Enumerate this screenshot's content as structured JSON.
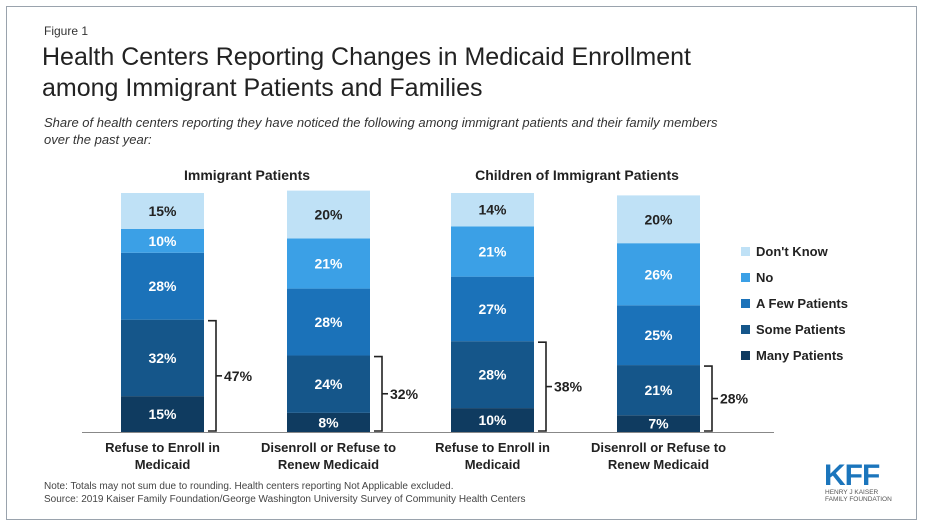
{
  "figure_label": "Figure 1",
  "title_line1": "Health Centers Reporting Changes in Medicaid Enrollment",
  "title_line2": "among Immigrant Patients and Families",
  "subtitle_line1": "Share of health centers reporting they have noticed the following among immigrant patients and their family members",
  "subtitle_line2": "over the past year:",
  "note_line1": "Note: Totals may not sum due to rounding. Health centers reporting Not Applicable excluded.",
  "note_line2": "Source: 2019 Kaiser Family Foundation/George Washington University Survey of Community Health Centers",
  "logo": {
    "mark": "KFF",
    "line1": "HENRY J KAISER",
    "line2": "FAMILY FOUNDATION",
    "color": "#1b75bc"
  },
  "colors": {
    "Many Patients": "#0f3b60",
    "Some Patients": "#15568a",
    "A Few Patients": "#1b72b9",
    "No": "#3ba0e6",
    "Don't Know": "#bfe1f6"
  },
  "chart_data": {
    "type": "bar",
    "stacked": true,
    "groups": [
      {
        "title": "Immigrant Patients",
        "categories": [
          "Refuse to Enroll in Medicaid",
          "Disenroll or Refuse to Renew Medicaid"
        ]
      },
      {
        "title": "Children of Immigrant Patients",
        "categories": [
          "Refuse to Enroll in Medicaid",
          "Disenroll or Refuse to Renew Medicaid"
        ]
      }
    ],
    "categories": [
      "Refuse to Enroll in Medicaid",
      "Disenroll or Refuse to Renew Medicaid",
      "Refuse to Enroll in Medicaid",
      "Disenroll or Refuse to Renew Medicaid"
    ],
    "category_lines": [
      [
        "Refuse to Enroll in",
        "Medicaid"
      ],
      [
        "Disenroll or Refuse to",
        "Renew Medicaid"
      ],
      [
        "Refuse to Enroll in",
        "Medicaid"
      ],
      [
        "Disenroll or Refuse to",
        "Renew Medicaid"
      ]
    ],
    "series": [
      {
        "name": "Many Patients",
        "values": [
          15,
          8,
          10,
          7
        ]
      },
      {
        "name": "Some Patients",
        "values": [
          32,
          24,
          28,
          21
        ]
      },
      {
        "name": "A Few Patients",
        "values": [
          28,
          28,
          27,
          25
        ]
      },
      {
        "name": "No",
        "values": [
          10,
          21,
          21,
          26
        ]
      },
      {
        "name": "Don't Know",
        "values": [
          15,
          20,
          14,
          20
        ]
      }
    ],
    "data_labels": [
      [
        "15%",
        "8%",
        "10%",
        "7%"
      ],
      [
        "32%",
        "24%",
        "28%",
        "21%"
      ],
      [
        "28%",
        "28%",
        "27%",
        "25%"
      ],
      [
        "10%",
        "21%",
        "21%",
        "26%"
      ],
      [
        "15%",
        "20%",
        "14%",
        "20%"
      ]
    ],
    "bracket_totals": [
      "47%",
      "32%",
      "38%",
      "28%"
    ],
    "legend_order": [
      "Don't Know",
      "No",
      "A Few Patients",
      "Some Patients",
      "Many Patients"
    ],
    "legend_position": "right",
    "ylim": [
      0,
      100
    ],
    "grid": false
  }
}
